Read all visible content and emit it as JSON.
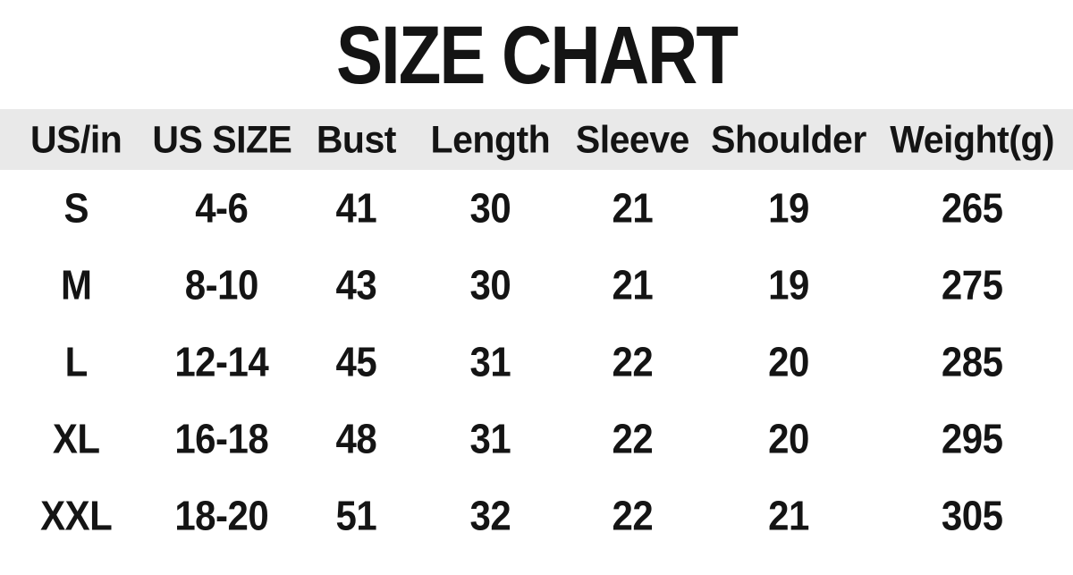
{
  "title": "SIZE CHART",
  "colors": {
    "background": "#ffffff",
    "header_bg": "#e9e9e9",
    "text": "#141414"
  },
  "chart_data": {
    "type": "table",
    "title": "SIZE CHART",
    "unit_note": "US/in",
    "columns": [
      "US/in",
      "US SIZE",
      "Bust",
      "Length",
      "Sleeve",
      "Shoulder",
      "Weight(g)"
    ],
    "rows": [
      [
        "S",
        "4-6",
        "41",
        "30",
        "21",
        "19",
        "265"
      ],
      [
        "M",
        "8-10",
        "43",
        "30",
        "21",
        "19",
        "275"
      ],
      [
        "L",
        "12-14",
        "45",
        "31",
        "22",
        "20",
        "285"
      ],
      [
        "XL",
        "16-18",
        "48",
        "31",
        "22",
        "20",
        "295"
      ],
      [
        "XXL",
        "18-20",
        "51",
        "32",
        "22",
        "21",
        "305"
      ]
    ],
    "layout": {
      "header_background": "#e9e9e9",
      "row_background": "#ffffff",
      "alignment": "center",
      "column_width_percents": [
        14.2,
        12.9,
        12.2,
        12.8,
        13.7,
        15.4,
        18.8
      ]
    }
  }
}
